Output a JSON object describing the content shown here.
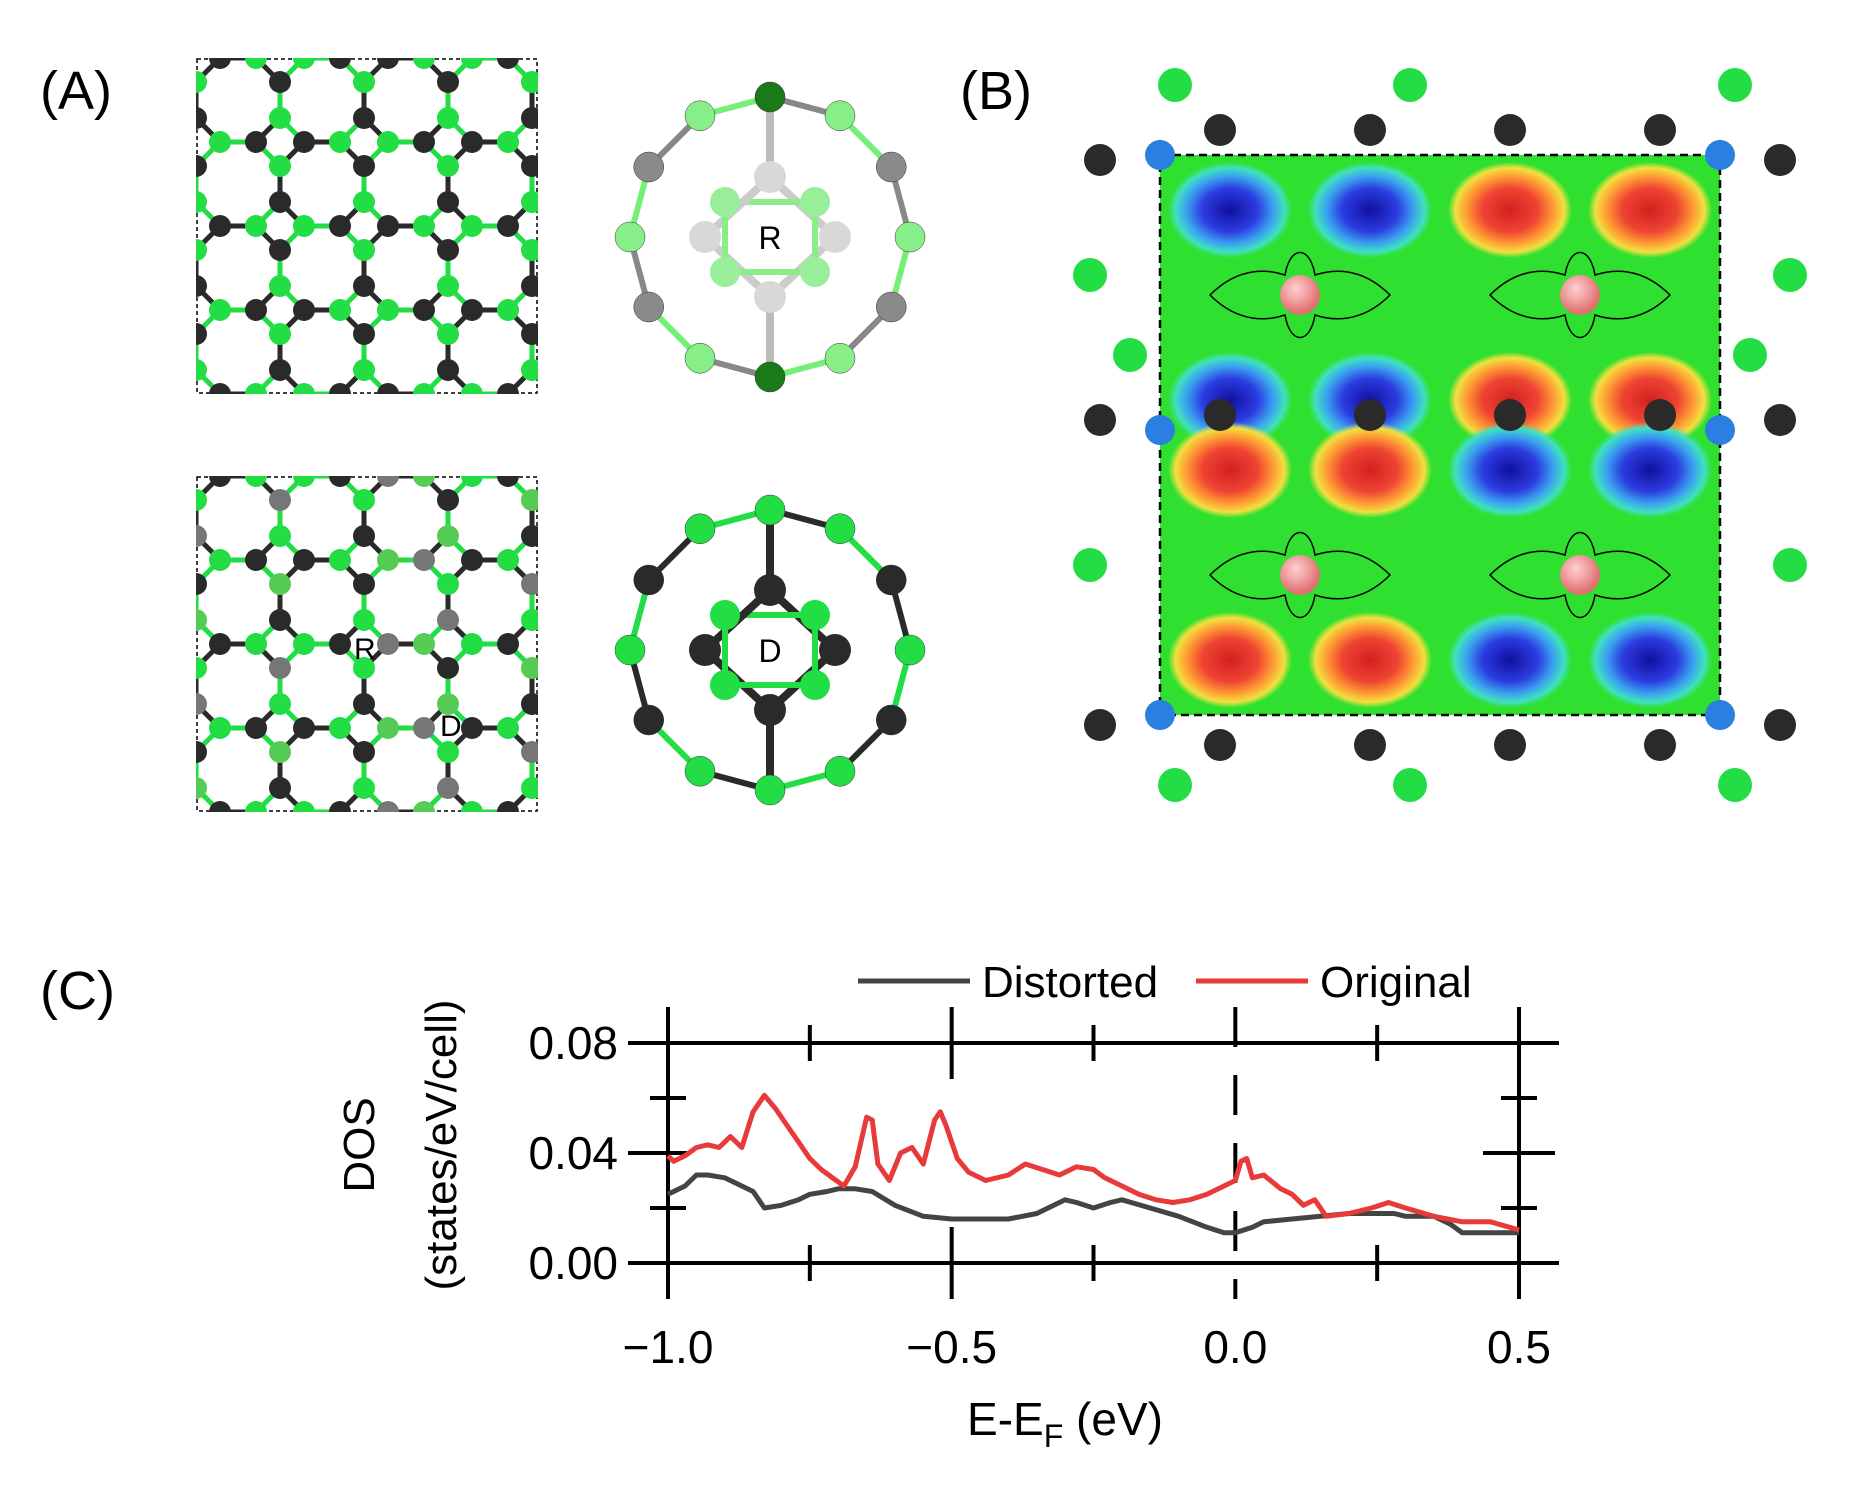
{
  "panels": {
    "a": "(A)",
    "b": "(B)",
    "c": "(C)"
  },
  "panel_a": {
    "cage_top_label": "R",
    "cage_bottom_label": "D",
    "lattice_label_r": "R",
    "lattice_label_d": "D"
  },
  "colors": {
    "green_atom": "#22dd44",
    "black_atom": "#2a2a2a",
    "gray_atom": "#777777",
    "white_atom": "#d8d8d8",
    "pink_atom": "#f08a8a",
    "blue_atom": "#2a7fe0",
    "distorted_line": "#444444",
    "original_line": "#e83a3a"
  },
  "chart_data": {
    "type": "line",
    "xlabel": "E-E",
    "xlabel_sub": "F",
    "xlabel_unit": " (eV)",
    "ylabel_line1": "DOS",
    "ylabel_line2": "(states/eV/cell)",
    "xlim": [
      -1.0,
      0.5
    ],
    "ylim": [
      0.0,
      0.08
    ],
    "xticks": [
      "−1.0",
      "−0.5",
      "0.0",
      "0.5"
    ],
    "yticks": [
      "0.00",
      "0.04",
      "0.08"
    ],
    "legend_position": "top",
    "series": [
      {
        "name": "Distorted",
        "x": [
          -1.0,
          -0.97,
          -0.95,
          -0.93,
          -0.9,
          -0.87,
          -0.85,
          -0.83,
          -0.8,
          -0.77,
          -0.75,
          -0.72,
          -0.7,
          -0.67,
          -0.64,
          -0.6,
          -0.55,
          -0.5,
          -0.45,
          -0.4,
          -0.35,
          -0.3,
          -0.28,
          -0.25,
          -0.22,
          -0.2,
          -0.15,
          -0.1,
          -0.05,
          -0.02,
          0.0,
          0.03,
          0.05,
          0.1,
          0.15,
          0.2,
          0.25,
          0.28,
          0.3,
          0.35,
          0.38,
          0.4,
          0.45,
          0.5
        ],
        "y": [
          0.025,
          0.028,
          0.032,
          0.032,
          0.031,
          0.028,
          0.026,
          0.02,
          0.021,
          0.023,
          0.025,
          0.026,
          0.027,
          0.027,
          0.026,
          0.021,
          0.017,
          0.016,
          0.016,
          0.016,
          0.018,
          0.023,
          0.022,
          0.02,
          0.022,
          0.023,
          0.02,
          0.017,
          0.013,
          0.011,
          0.011,
          0.013,
          0.015,
          0.016,
          0.017,
          0.018,
          0.018,
          0.018,
          0.017,
          0.017,
          0.014,
          0.011,
          0.011,
          0.011
        ]
      },
      {
        "name": "Original",
        "x": [
          -1.0,
          -0.99,
          -0.97,
          -0.95,
          -0.93,
          -0.91,
          -0.89,
          -0.87,
          -0.85,
          -0.83,
          -0.81,
          -0.79,
          -0.77,
          -0.75,
          -0.73,
          -0.71,
          -0.69,
          -0.67,
          -0.65,
          -0.64,
          -0.63,
          -0.61,
          -0.59,
          -0.57,
          -0.55,
          -0.53,
          -0.52,
          -0.51,
          -0.49,
          -0.47,
          -0.44,
          -0.4,
          -0.37,
          -0.34,
          -0.31,
          -0.28,
          -0.25,
          -0.23,
          -0.2,
          -0.17,
          -0.14,
          -0.11,
          -0.08,
          -0.05,
          -0.02,
          0.0,
          0.01,
          0.02,
          0.03,
          0.05,
          0.08,
          0.1,
          0.12,
          0.14,
          0.16,
          0.2,
          0.24,
          0.27,
          0.3,
          0.35,
          0.4,
          0.45,
          0.5
        ],
        "y": [
          0.039,
          0.037,
          0.039,
          0.042,
          0.043,
          0.042,
          0.046,
          0.042,
          0.055,
          0.061,
          0.056,
          0.05,
          0.044,
          0.038,
          0.034,
          0.031,
          0.028,
          0.035,
          0.053,
          0.052,
          0.036,
          0.03,
          0.04,
          0.042,
          0.036,
          0.052,
          0.055,
          0.05,
          0.038,
          0.033,
          0.03,
          0.032,
          0.036,
          0.034,
          0.032,
          0.035,
          0.034,
          0.031,
          0.028,
          0.025,
          0.023,
          0.022,
          0.023,
          0.025,
          0.028,
          0.03,
          0.037,
          0.038,
          0.031,
          0.032,
          0.027,
          0.025,
          0.021,
          0.023,
          0.017,
          0.018,
          0.02,
          0.022,
          0.02,
          0.017,
          0.015,
          0.015,
          0.012
        ]
      }
    ]
  }
}
